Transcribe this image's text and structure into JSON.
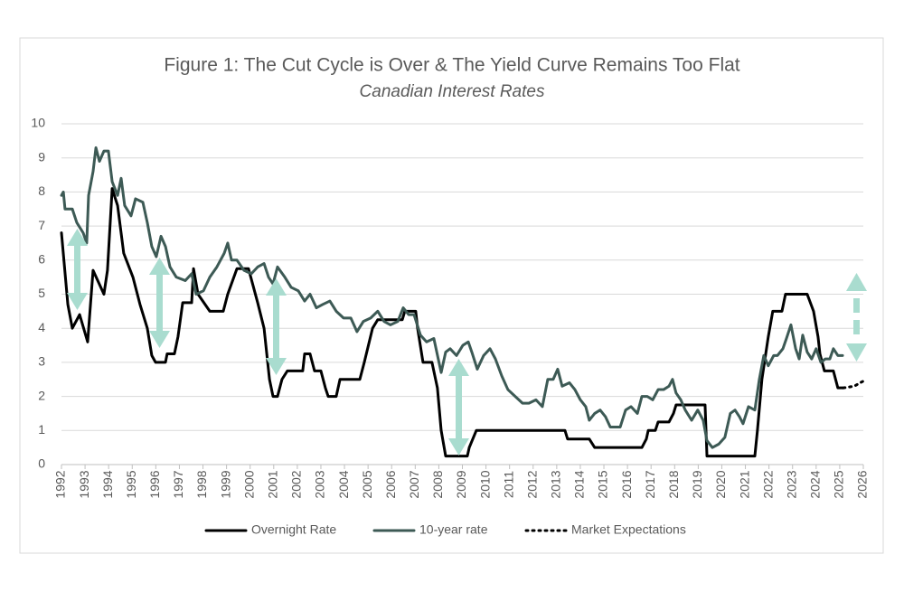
{
  "chart_data": {
    "type": "line",
    "title": "Figure 1: The Cut Cycle is Over & The Yield Curve Remains Too Flat",
    "subtitle": "Canadian Interest Rates",
    "xlim": [
      1992,
      2026
    ],
    "xticks": [
      1992,
      1993,
      1994,
      1995,
      1996,
      1997,
      1998,
      1999,
      2000,
      2001,
      2002,
      2003,
      2004,
      2005,
      2006,
      2007,
      2008,
      2009,
      2010,
      2011,
      2012,
      2013,
      2014,
      2015,
      2016,
      2017,
      2018,
      2019,
      2020,
      2021,
      2022,
      2023,
      2024,
      2025,
      2026
    ],
    "ylim": [
      0,
      10
    ],
    "yticks": [
      0,
      1,
      2,
      3,
      4,
      5,
      6,
      7,
      8,
      9,
      10
    ],
    "grid": true,
    "legend": "bottom",
    "series": [
      {
        "name": "Overnight Rate",
        "color": "#000000",
        "style": "solid",
        "x": [
          1992.0,
          1992.27,
          1992.46,
          1992.77,
          1993.11,
          1993.34,
          1993.8,
          1993.95,
          1994.15,
          1994.38,
          1994.64,
          1995.03,
          1995.33,
          1995.64,
          1995.83,
          1995.99,
          1996.41,
          1996.48,
          1996.79,
          1996.94,
          1997.14,
          1997.52,
          1997.6,
          1997.79,
          1998.29,
          1998.86,
          1999.05,
          1999.44,
          1999.93,
          2000.32,
          2000.59,
          2000.82,
          2000.97,
          2001.16,
          2001.35,
          2001.58,
          2002.23,
          2002.31,
          2002.54,
          2002.73,
          2003.0,
          2003.19,
          2003.31,
          2003.65,
          2003.81,
          2004.65,
          2004.84,
          2005.19,
          2005.41,
          2006.45,
          2006.56,
          2007.02,
          2007.1,
          2007.33,
          2007.71,
          2007.94,
          2008.1,
          2008.29,
          2009.21,
          2009.29,
          2009.59,
          2013.35,
          2013.46,
          2014.38,
          2014.61,
          2016.61,
          2016.8,
          2016.88,
          2017.18,
          2017.3,
          2017.76,
          2017.95,
          2018.06,
          2019.29,
          2019.37,
          2021.4,
          2021.51,
          2021.7,
          2021.97,
          2022.16,
          2022.55,
          2022.7,
          2023.62,
          2023.89,
          2024.08,
          2024.16,
          2024.35,
          2024.73,
          2024.92,
          2025.15
        ],
        "values": [
          6.8,
          4.7,
          4.0,
          4.4,
          3.6,
          5.7,
          5.0,
          5.7,
          8.1,
          7.6,
          6.2,
          5.5,
          4.7,
          4.0,
          3.2,
          3.0,
          3.0,
          3.25,
          3.25,
          3.75,
          4.75,
          4.75,
          5.75,
          5.0,
          4.5,
          4.5,
          5.0,
          5.75,
          5.75,
          4.75,
          4.0,
          2.5,
          2.0,
          2.0,
          2.5,
          2.75,
          2.75,
          3.25,
          3.25,
          2.75,
          2.75,
          2.25,
          2.0,
          2.0,
          2.5,
          2.5,
          3.0,
          4.0,
          4.25,
          4.25,
          4.5,
          4.5,
          4.0,
          3.0,
          3.0,
          2.25,
          1.0,
          0.25,
          0.25,
          0.5,
          1.0,
          1.0,
          0.75,
          0.75,
          0.5,
          0.5,
          0.75,
          1.0,
          1.0,
          1.25,
          1.25,
          1.5,
          1.75,
          1.75,
          0.25,
          0.25,
          1.0,
          2.5,
          3.75,
          4.5,
          4.5,
          5.0,
          5.0,
          4.5,
          3.75,
          3.25,
          2.75,
          2.75,
          2.25,
          2.25
        ]
      },
      {
        "name": "10-year rate",
        "color": "#3d5a55",
        "style": "solid",
        "x": [
          1992.0,
          1992.08,
          1992.15,
          1992.46,
          1992.65,
          1992.92,
          1993.07,
          1993.15,
          1993.34,
          1993.46,
          1993.61,
          1993.8,
          1993.99,
          1994.15,
          1994.38,
          1994.53,
          1994.68,
          1994.95,
          1995.14,
          1995.45,
          1995.64,
          1995.83,
          1996.02,
          1996.22,
          1996.41,
          1996.6,
          1996.87,
          1997.25,
          1997.52,
          1997.71,
          1998.02,
          1998.29,
          1998.59,
          1998.9,
          1999.05,
          1999.21,
          1999.44,
          1999.74,
          2000.05,
          2000.32,
          2000.59,
          2000.78,
          2000.97,
          2001.16,
          2001.47,
          2001.74,
          2002.04,
          2002.31,
          2002.54,
          2002.81,
          2003.08,
          2003.38,
          2003.65,
          2003.96,
          2004.27,
          2004.53,
          2004.8,
          2005.11,
          2005.41,
          2005.68,
          2005.95,
          2006.26,
          2006.49,
          2006.72,
          2006.95,
          2007.22,
          2007.48,
          2007.79,
          2008.1,
          2008.29,
          2008.48,
          2008.75,
          2009.02,
          2009.25,
          2009.4,
          2009.63,
          2009.9,
          2010.17,
          2010.4,
          2010.67,
          2010.93,
          2011.24,
          2011.55,
          2011.82,
          2012.12,
          2012.39,
          2012.62,
          2012.85,
          2013.04,
          2013.23,
          2013.54,
          2013.77,
          2014.0,
          2014.23,
          2014.38,
          2014.61,
          2014.84,
          2015.07,
          2015.27,
          2015.46,
          2015.69,
          2015.92,
          2016.15,
          2016.42,
          2016.61,
          2016.84,
          2017.07,
          2017.3,
          2017.53,
          2017.76,
          2017.91,
          2018.06,
          2018.26,
          2018.45,
          2018.72,
          2018.98,
          2019.21,
          2019.37,
          2019.6,
          2019.87,
          2020.13,
          2020.36,
          2020.56,
          2020.75,
          2020.9,
          2021.13,
          2021.4,
          2021.59,
          2021.78,
          2021.97,
          2022.2,
          2022.36,
          2022.59,
          2022.74,
          2022.93,
          2023.13,
          2023.28,
          2023.43,
          2023.62,
          2023.81,
          2024.0,
          2024.2,
          2024.39,
          2024.58,
          2024.73,
          2024.92,
          2025.12
        ],
        "values": [
          7.9,
          8.0,
          7.5,
          7.5,
          7.1,
          6.8,
          6.5,
          7.9,
          8.6,
          9.3,
          8.9,
          9.2,
          9.2,
          8.3,
          7.9,
          8.4,
          7.6,
          7.3,
          7.8,
          7.7,
          7.1,
          6.4,
          6.1,
          6.7,
          6.4,
          5.8,
          5.5,
          5.4,
          5.6,
          5.0,
          5.1,
          5.5,
          5.8,
          6.2,
          6.5,
          6.0,
          6.0,
          5.7,
          5.6,
          5.8,
          5.9,
          5.5,
          5.3,
          5.8,
          5.5,
          5.2,
          5.1,
          4.8,
          5.0,
          4.6,
          4.7,
          4.8,
          4.5,
          4.3,
          4.3,
          3.9,
          4.2,
          4.3,
          4.5,
          4.2,
          4.1,
          4.2,
          4.6,
          4.4,
          4.4,
          3.8,
          3.6,
          3.7,
          2.7,
          3.3,
          3.4,
          3.2,
          3.5,
          3.6,
          3.3,
          2.8,
          3.2,
          3.4,
          3.1,
          2.6,
          2.2,
          2.0,
          1.8,
          1.8,
          1.9,
          1.7,
          2.5,
          2.5,
          2.8,
          2.3,
          2.4,
          2.2,
          1.9,
          1.7,
          1.3,
          1.5,
          1.6,
          1.4,
          1.1,
          1.1,
          1.1,
          1.6,
          1.7,
          1.5,
          2.0,
          2.0,
          1.9,
          2.2,
          2.2,
          2.3,
          2.5,
          2.1,
          1.9,
          1.6,
          1.3,
          1.6,
          1.3,
          0.7,
          0.5,
          0.6,
          0.8,
          1.5,
          1.6,
          1.4,
          1.2,
          1.7,
          1.6,
          2.5,
          3.2,
          2.9,
          3.2,
          3.2,
          3.4,
          3.7,
          4.1,
          3.4,
          3.1,
          3.8,
          3.3,
          3.1,
          3.4,
          3.0,
          3.1,
          3.1,
          3.4,
          3.2,
          3.2
        ]
      },
      {
        "name": "Market Expectations",
        "color": "#000000",
        "style": "dotted",
        "x": [
          2025.15,
          2025.61,
          2026.0
        ],
        "values": [
          2.25,
          2.3,
          2.45
        ]
      }
    ]
  }
}
